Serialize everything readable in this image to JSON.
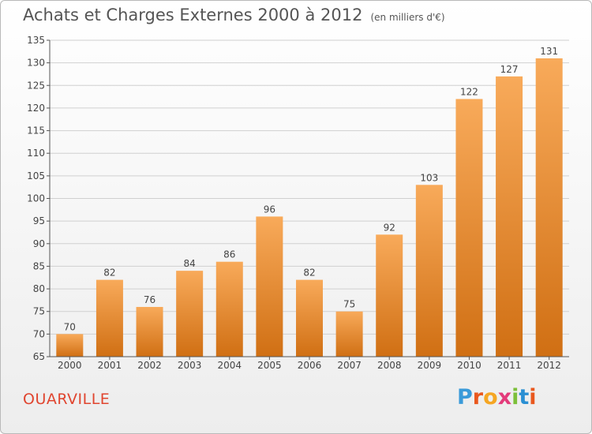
{
  "header": {
    "title": "Achats et Charges Externes 2000 à 2012",
    "unit": "(en milliers d'€)"
  },
  "footer": {
    "commune": "OUARVILLE",
    "logo": {
      "letters": [
        "P",
        "r",
        "o",
        "x",
        "i",
        "t",
        "i"
      ],
      "colors": [
        "#3a9ad9",
        "#e9581e",
        "#f5a623",
        "#e33b7a",
        "#7cbf3a",
        "#2a8fd3",
        "#e9581e"
      ]
    }
  },
  "colors": {
    "bar_top": "#f8aa5a",
    "bar_bottom": "#d06f13",
    "grid": "#d0d0d0",
    "axis": "#555555",
    "text": "#444444"
  },
  "chart_data": {
    "type": "bar",
    "title": "Achats et Charges Externes 2000 à 2012",
    "categories": [
      "2000",
      "2001",
      "2002",
      "2003",
      "2004",
      "2005",
      "2006",
      "2007",
      "2008",
      "2009",
      "2010",
      "2011",
      "2012"
    ],
    "values": [
      70,
      82,
      76,
      84,
      86,
      96,
      82,
      75,
      92,
      103,
      122,
      127,
      131
    ],
    "ylim": [
      65,
      135
    ],
    "yticks": [
      65,
      70,
      75,
      80,
      85,
      90,
      95,
      100,
      105,
      110,
      115,
      120,
      125,
      130,
      135
    ],
    "grid": true,
    "xlabel": "",
    "ylabel": ""
  }
}
